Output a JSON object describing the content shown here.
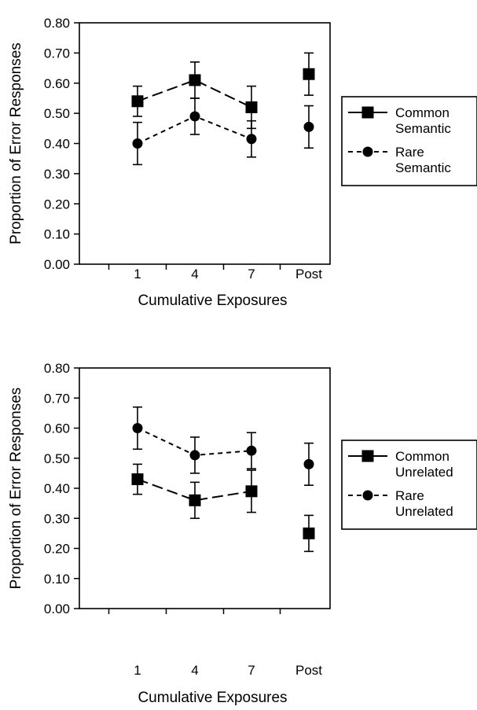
{
  "chart_data": [
    {
      "type": "line",
      "xlabel": "Cumulative Exposures",
      "ylabel": "Proportion of Error Responses",
      "categories": [
        "1",
        "4",
        "7",
        "Post"
      ],
      "ylim": [
        0,
        0.8
      ],
      "yticks": [
        "0.00",
        "0.10",
        "0.20",
        "0.30",
        "0.40",
        "0.50",
        "0.60",
        "0.70",
        "0.80"
      ],
      "legend_position": "right",
      "grid": false,
      "series": [
        {
          "name": "Common Semantic",
          "legend_lines": [
            "Common",
            "Semantic"
          ],
          "marker": "square",
          "line_style": "long-dash",
          "values": [
            0.54,
            0.61,
            0.52,
            0.63
          ],
          "error": [
            0.05,
            0.06,
            0.07,
            0.07
          ]
        },
        {
          "name": "Rare Semantic",
          "legend_lines": [
            "Rare",
            "Semantic"
          ],
          "marker": "circle",
          "line_style": "short-dash",
          "values": [
            0.4,
            0.49,
            0.415,
            0.455
          ],
          "error": [
            0.07,
            0.06,
            0.06,
            0.07
          ]
        }
      ]
    },
    {
      "type": "line",
      "xlabel": "Cumulative Exposures",
      "ylabel": "Proportion of Error Responses",
      "categories": [
        "1",
        "4",
        "7",
        "Post"
      ],
      "ylim": [
        0,
        0.8
      ],
      "yticks": [
        "0.00",
        "0.10",
        "0.20",
        "0.30",
        "0.40",
        "0.50",
        "0.60",
        "0.70",
        "0.80"
      ],
      "legend_position": "right",
      "grid": false,
      "series": [
        {
          "name": "Common Unrelated",
          "legend_lines": [
            "Common",
            "Unrelated"
          ],
          "marker": "square",
          "line_style": "long-dash",
          "values": [
            0.43,
            0.36,
            0.39,
            0.25
          ],
          "error": [
            0.05,
            0.06,
            0.07,
            0.06
          ]
        },
        {
          "name": "Rare Unrelated",
          "legend_lines": [
            "Rare",
            "Unrelated"
          ],
          "marker": "circle",
          "line_style": "short-dash",
          "values": [
            0.6,
            0.51,
            0.525,
            0.48
          ],
          "error": [
            0.07,
            0.06,
            0.06,
            0.07
          ]
        }
      ]
    }
  ]
}
